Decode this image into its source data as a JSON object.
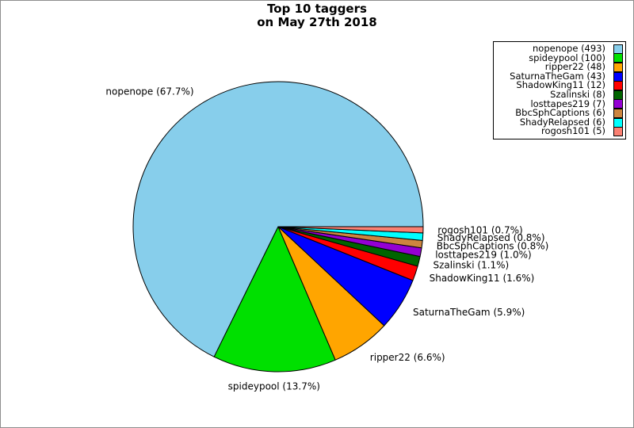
{
  "window": {
    "background_color": "#FFFFFF",
    "frame_border_color": "#8E8E8E"
  },
  "chart_data": {
    "type": "pie",
    "title": "Top 10 taggers on May 27th 2018",
    "title_lines": [
      "Top 10 taggers",
      "on May 27th 2018"
    ],
    "start_angle_deg": 0,
    "direction": "counterclockwise",
    "label_distance": 1.1,
    "edge_color": "#000000",
    "text_color": "#000000",
    "legend": {
      "position": "upper-right",
      "marker_side": "right",
      "text_align": "right",
      "border_color": "#000000",
      "background_color": "#FFFFFF"
    },
    "slices": [
      {
        "name": "nopenope",
        "count": 493,
        "percent_label": "67.7%",
        "color": "#87CEEB"
      },
      {
        "name": "spideypool",
        "count": 100,
        "percent_label": "13.7%",
        "color": "#00E000"
      },
      {
        "name": "ripper22",
        "count": 48,
        "percent_label": "6.6%",
        "color": "#FFA500"
      },
      {
        "name": "SaturnaTheGam",
        "count": 43,
        "percent_label": "5.9%",
        "color": "#0000FF"
      },
      {
        "name": "ShadowKing11",
        "count": 12,
        "percent_label": "1.6%",
        "color": "#FF0000"
      },
      {
        "name": "Szalinski",
        "count": 8,
        "percent_label": "1.1%",
        "color": "#006400"
      },
      {
        "name": "losttapes219",
        "count": 7,
        "percent_label": "1.0%",
        "color": "#9400D3"
      },
      {
        "name": "BbcSphCaptions",
        "count": 6,
        "percent_label": "0.8%",
        "color": "#CD853F"
      },
      {
        "name": "ShadyRelapsed",
        "count": 6,
        "percent_label": "0.8%",
        "color": "#00FFFF"
      },
      {
        "name": "rogosh101",
        "count": 5,
        "percent_label": "0.7%",
        "color": "#FA8072"
      }
    ]
  }
}
